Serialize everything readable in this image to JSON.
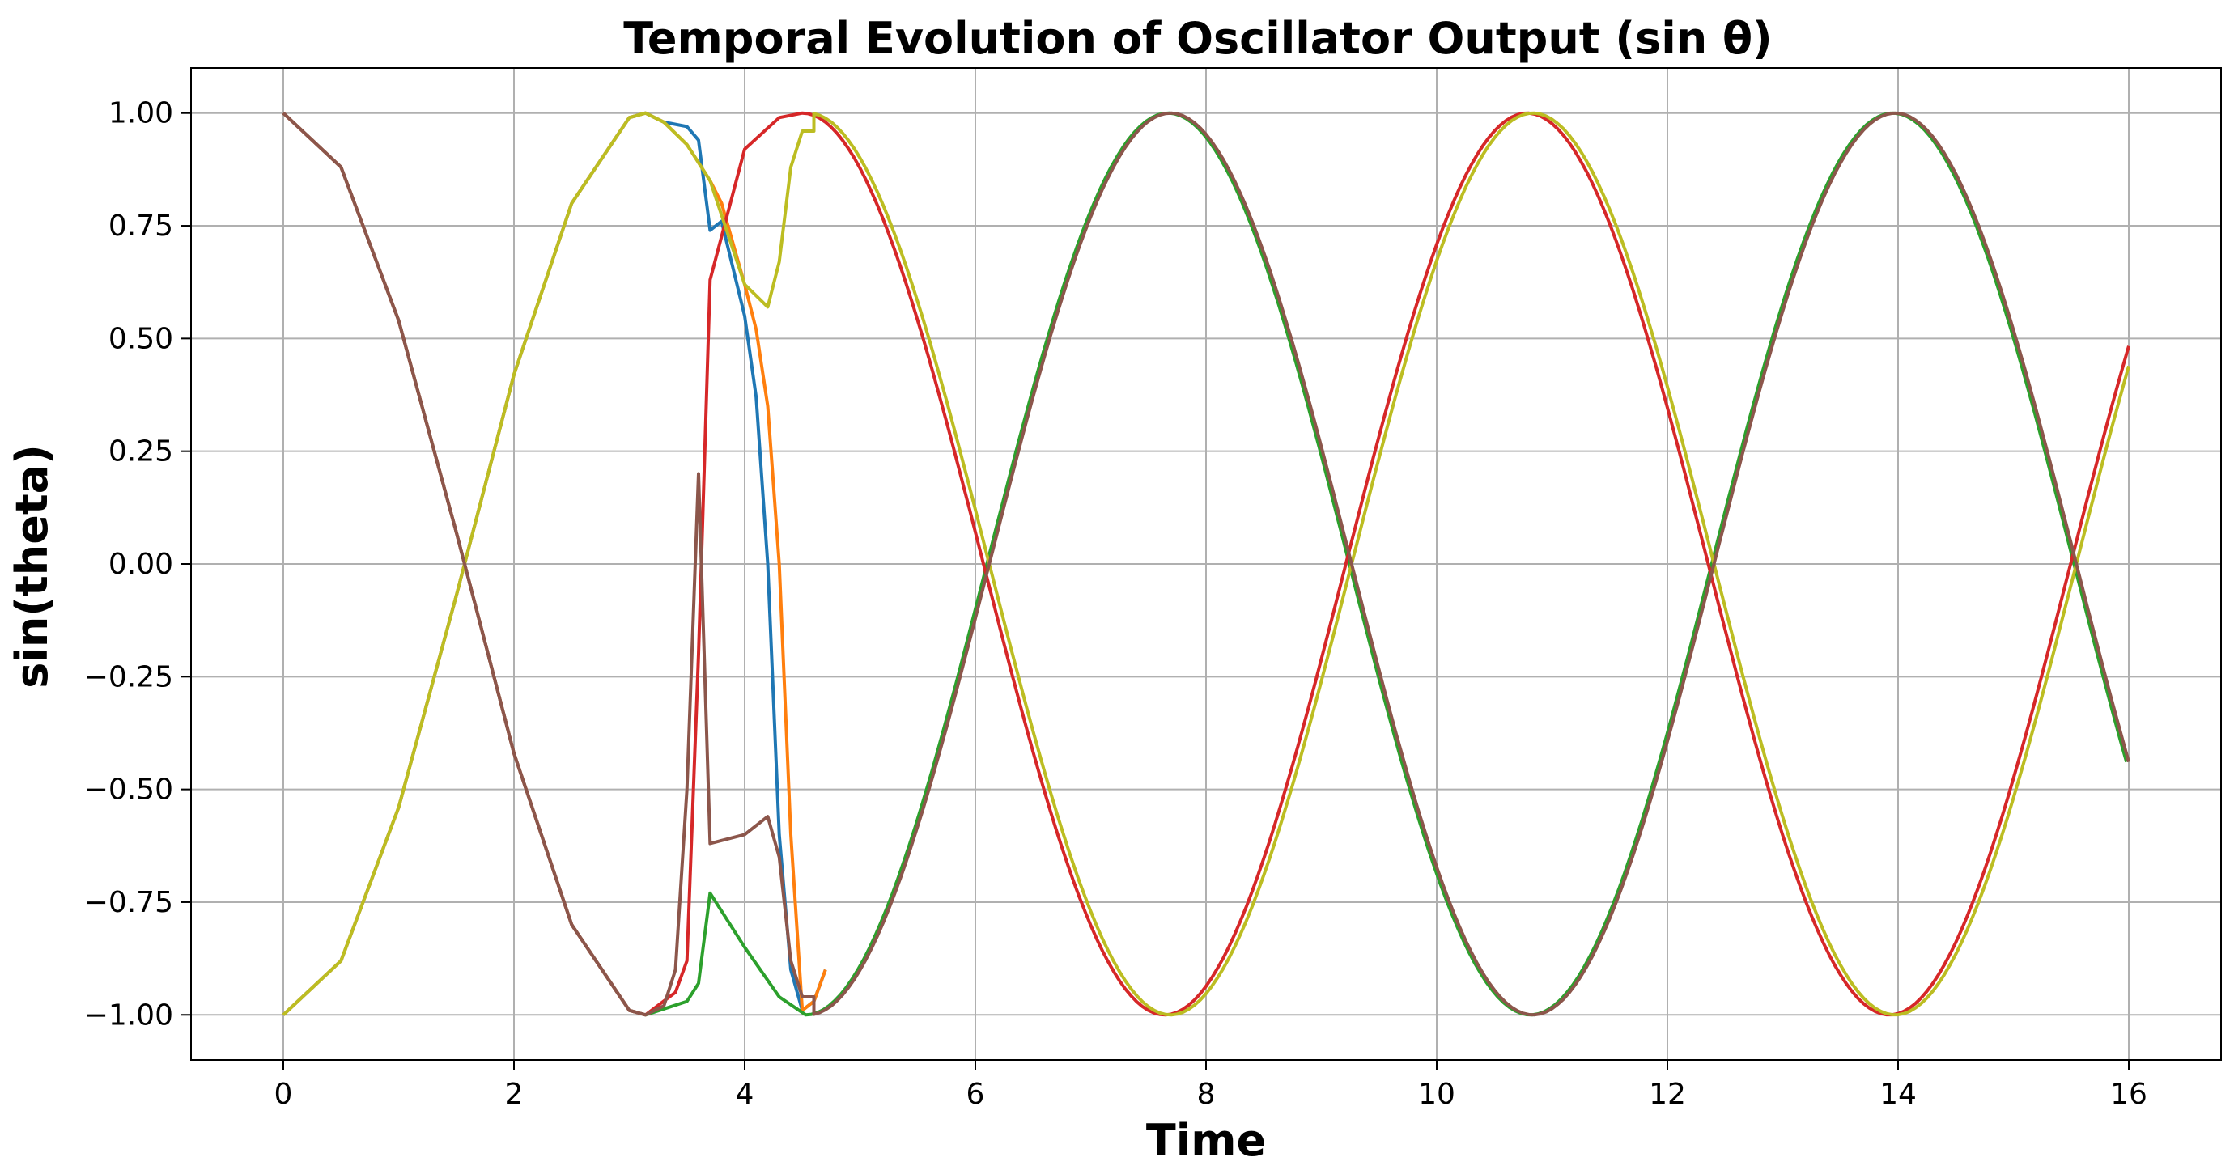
{
  "chart_data": {
    "type": "line",
    "title": "Temporal Evolution of Oscillator Output (sin θ)",
    "xlabel": "Time",
    "ylabel": "sin(theta)",
    "xlim": [
      -0.8,
      16.8
    ],
    "ylim": [
      -1.1,
      1.1
    ],
    "xticks": [
      0,
      2,
      4,
      6,
      8,
      10,
      12,
      14,
      16
    ],
    "xtick_labels": [
      "0",
      "2",
      "4",
      "6",
      "8",
      "10",
      "12",
      "14",
      "16"
    ],
    "yticks": [
      1.0,
      0.75,
      0.5,
      0.25,
      0.0,
      -0.25,
      -0.5,
      -0.75,
      -1.0
    ],
    "ytick_labels": [
      "1.00",
      "0.75",
      "0.50",
      "0.25",
      "0.00",
      "−0.25",
      "−0.50",
      "−0.75",
      "−1.00"
    ],
    "grid": true,
    "legend": "none",
    "colors": [
      "#1f77b4",
      "#ff7f0e",
      "#2ca02c",
      "#d62728",
      "#9467bd",
      "#8c564b",
      "#e377c2",
      "#7f7f7f",
      "#bcbd22",
      "#17becf"
    ],
    "series": [
      {
        "color": "#1f77b4",
        "x": [
          0,
          0.5,
          1.0,
          1.5,
          2.0,
          2.5,
          3.0,
          3.14,
          3.3,
          3.5,
          3.6,
          3.7,
          3.8,
          4.0,
          4.1,
          4.2,
          4.3,
          4.4,
          4.5,
          4.6,
          4.7
        ],
        "y": [
          -1.0,
          -0.88,
          -0.54,
          -0.07,
          0.42,
          0.8,
          0.99,
          1.0,
          0.98,
          0.97,
          0.94,
          0.74,
          0.76,
          0.55,
          0.37,
          0.0,
          -0.6,
          -0.9,
          -0.99,
          -0.97,
          -0.9
        ]
      },
      {
        "color": "#ff7f0e",
        "x": [
          0,
          0.5,
          1.0,
          1.5,
          2.0,
          2.5,
          3.0,
          3.14,
          3.3,
          3.5,
          3.7,
          3.8,
          4.0,
          4.1,
          4.2,
          4.3,
          4.4,
          4.5,
          4.6,
          4.7
        ],
        "y": [
          -1.0,
          -0.88,
          -0.54,
          -0.07,
          0.42,
          0.8,
          0.99,
          1.0,
          0.98,
          0.93,
          0.85,
          0.8,
          0.62,
          0.52,
          0.35,
          0.0,
          -0.6,
          -0.99,
          -0.97,
          -0.9
        ]
      },
      {
        "color": "#2ca02c",
        "x": [
          0,
          0.5,
          1.0,
          1.5,
          2.0,
          2.5,
          3.0,
          3.14,
          3.5,
          3.6,
          3.7,
          4.0,
          4.3,
          4.53
        ],
        "y": [
          1.0,
          0.88,
          0.54,
          0.07,
          -0.42,
          -0.8,
          -0.99,
          -1.0,
          -0.97,
          -0.93,
          -0.73,
          -0.85,
          -0.96,
          -1.0
        ],
        "phase_after": 4.53,
        "sign": -1,
        "x_end": 16.0
      },
      {
        "color": "#d62728",
        "x": [
          0,
          0.5,
          1.0,
          1.5,
          2.0,
          2.5,
          3.0,
          3.14,
          3.4,
          3.5,
          3.6,
          3.7,
          4.0,
          4.3,
          4.5
        ],
        "y": [
          1.0,
          0.88,
          0.54,
          0.07,
          -0.42,
          -0.8,
          -0.99,
          -1.0,
          -0.95,
          -0.88,
          -0.2,
          0.63,
          0.92,
          0.99,
          1.0
        ],
        "phase_after": 4.5,
        "sign": 1,
        "x_end": 16.0
      },
      {
        "color": "#bcbd22",
        "x": [
          0,
          0.5,
          1.0,
          1.5,
          2.0,
          2.5,
          3.0,
          3.14,
          3.3,
          3.5,
          3.7,
          4.0,
          4.2,
          4.3,
          4.4,
          4.5,
          4.6
        ],
        "y": [
          -1.0,
          -0.88,
          -0.54,
          -0.07,
          0.42,
          0.8,
          0.99,
          1.0,
          0.98,
          0.93,
          0.85,
          0.62,
          0.57,
          0.67,
          0.88,
          0.96,
          0.96
        ],
        "phase_after": 4.55,
        "sign": 1,
        "x_end": 16.0
      },
      {
        "color": "#8c564b",
        "x": [
          0,
          0.5,
          1.0,
          1.5,
          2.0,
          2.5,
          3.0,
          3.14,
          3.3,
          3.4,
          3.5,
          3.6,
          3.7,
          4.0,
          4.2,
          4.3,
          4.4,
          4.5,
          4.6
        ],
        "y": [
          1.0,
          0.88,
          0.54,
          0.07,
          -0.42,
          -0.8,
          -0.99,
          -1.0,
          -0.98,
          -0.9,
          -0.5,
          0.2,
          -0.62,
          -0.6,
          -0.56,
          -0.65,
          -0.88,
          -0.96,
          -0.96
        ],
        "phase_after": 4.55,
        "sign": -1,
        "x_end": 16.0
      }
    ]
  }
}
